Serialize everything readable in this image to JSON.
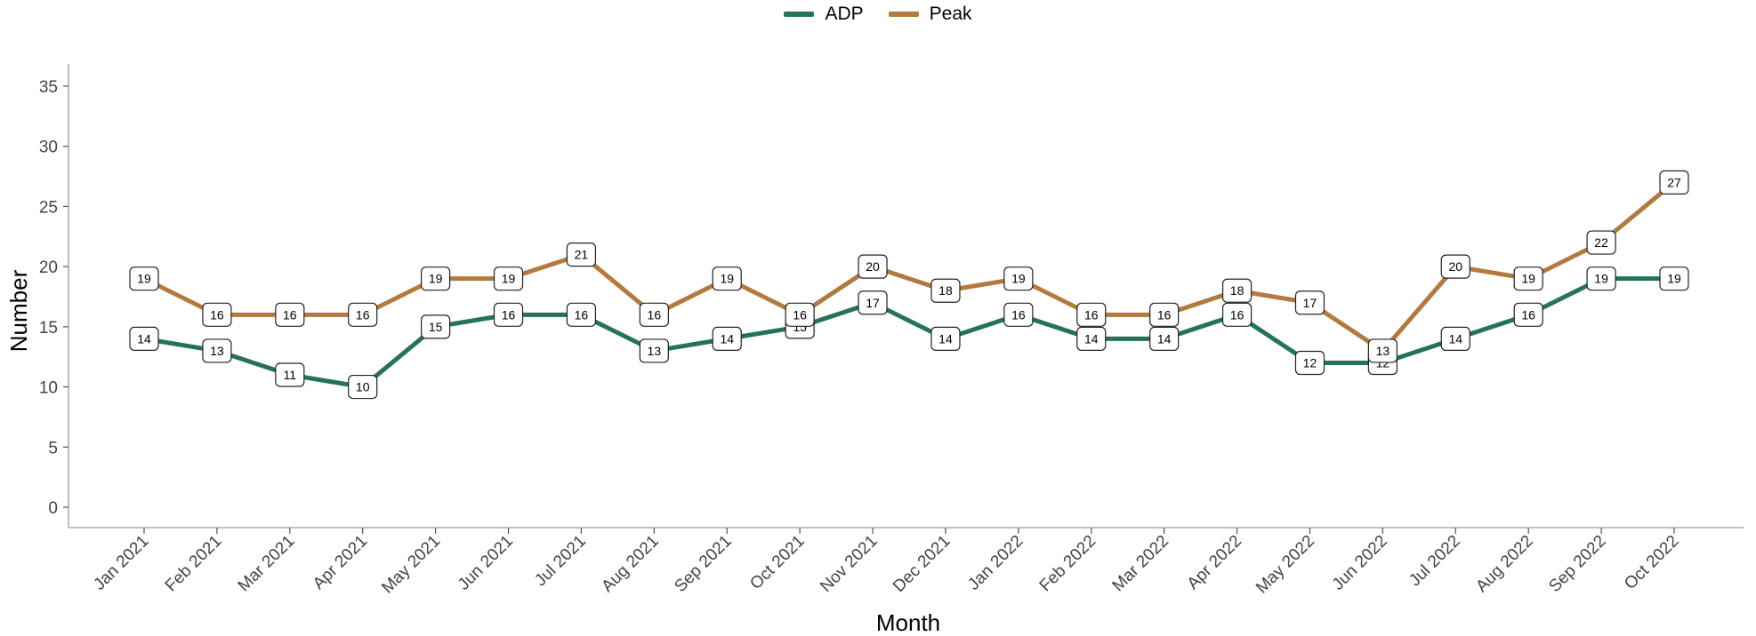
{
  "chart_data": {
    "type": "line",
    "title": "",
    "xlabel": "Month",
    "ylabel": "Number",
    "categories": [
      "Jan 2021",
      "Feb 2021",
      "Mar 2021",
      "Apr 2021",
      "May 2021",
      "Jun 2021",
      "Jul 2021",
      "Aug 2021",
      "Sep 2021",
      "Oct 2021",
      "Nov 2021",
      "Dec 2021",
      "Jan 2022",
      "Feb 2022",
      "Mar 2022",
      "Apr 2022",
      "May 2022",
      "Jun 2022",
      "Jul 2022",
      "Aug 2022",
      "Sep 2022",
      "Oct 2022"
    ],
    "series": [
      {
        "name": "ADP",
        "color": "#23735b",
        "values": [
          14,
          13,
          11,
          10,
          15,
          16,
          16,
          13,
          14,
          15,
          17,
          14,
          16,
          14,
          14,
          16,
          12,
          12,
          14,
          16,
          19,
          19
        ]
      },
      {
        "name": "Peak",
        "color": "#b27a3e",
        "values": [
          19,
          16,
          16,
          16,
          19,
          19,
          21,
          16,
          19,
          16,
          20,
          18,
          19,
          16,
          16,
          18,
          17,
          13,
          20,
          19,
          22,
          27
        ]
      }
    ],
    "ylim": [
      0,
      35
    ],
    "yticks": [
      0,
      5,
      10,
      15,
      20,
      25,
      30,
      35
    ],
    "grid": false,
    "legend_position": "top-center",
    "data_labels": true
  }
}
